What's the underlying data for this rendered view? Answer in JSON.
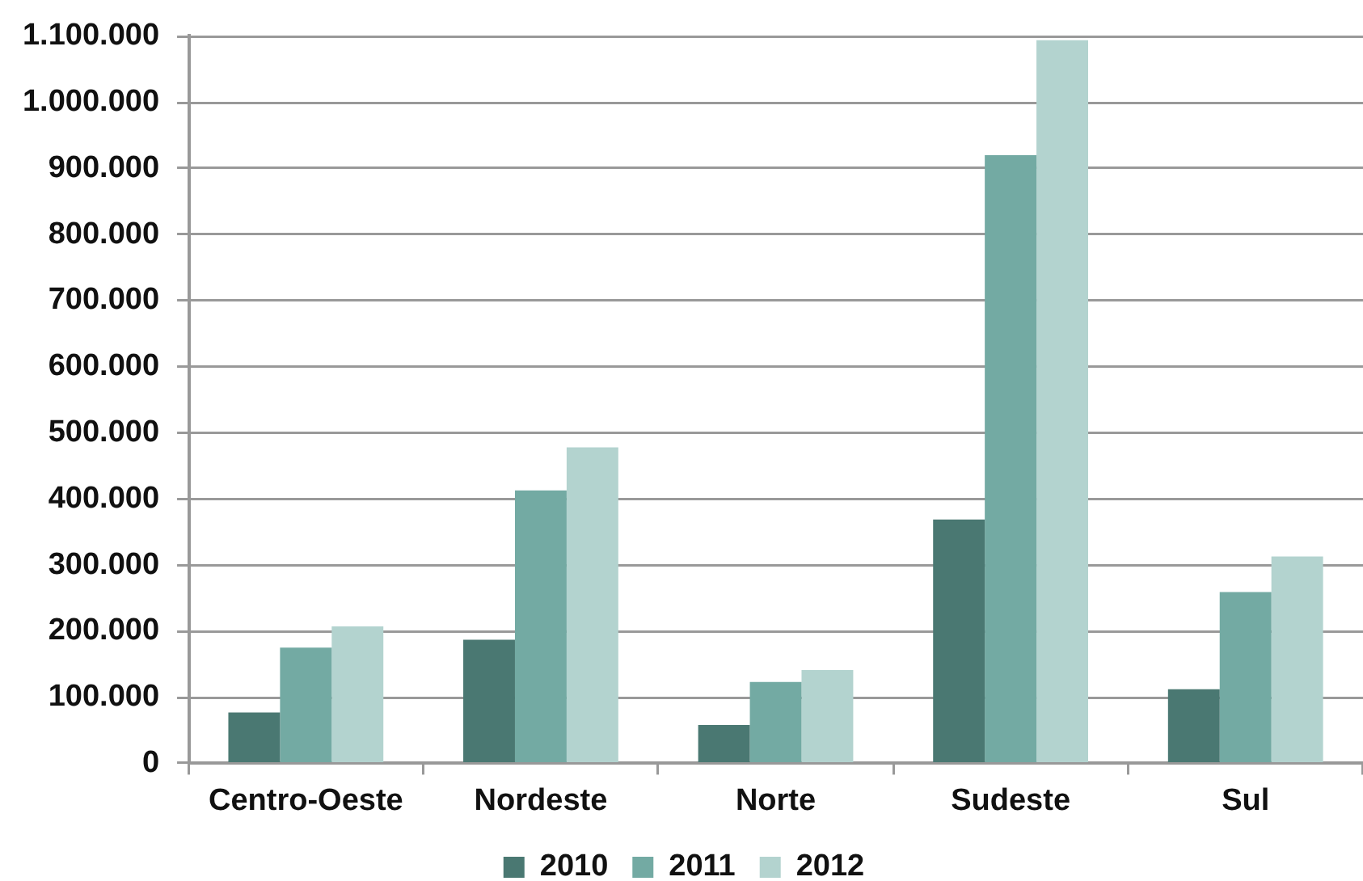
{
  "chart_data": {
    "type": "bar",
    "categories": [
      "Centro-Oeste",
      "Nordeste",
      "Norte",
      "Sudeste",
      "Sul"
    ],
    "series": [
      {
        "name": "2010",
        "color": "#4a7872",
        "values": [
          77000,
          187000,
          58000,
          369000,
          112000
        ]
      },
      {
        "name": "2011",
        "color": "#73aaa3",
        "values": [
          175000,
          413000,
          123000,
          920000,
          259000
        ]
      },
      {
        "name": "2012",
        "color": "#b3d3cf",
        "values": [
          207000,
          478000,
          141000,
          1094000,
          313000
        ]
      }
    ],
    "ylim": [
      0,
      1100000
    ],
    "yticks": [
      0,
      {
        "value": 100000,
        "label": "100.000"
      },
      {
        "value": 200000,
        "label": "200.000"
      },
      {
        "value": 300000,
        "label": "300.000"
      },
      {
        "value": 400000,
        "label": "400.000"
      },
      {
        "value": 500000,
        "label": "500.000"
      },
      {
        "value": 600000,
        "label": "600.000"
      },
      {
        "value": 700000,
        "label": "700.000"
      },
      {
        "value": 800000,
        "label": "800.000"
      },
      {
        "value": 900000,
        "label": "900.000"
      },
      {
        "value": 1000000,
        "label": "1.000.000"
      },
      {
        "value": 1100000,
        "label": "1.100.000"
      }
    ],
    "grid": "y",
    "legend": "bottom"
  }
}
